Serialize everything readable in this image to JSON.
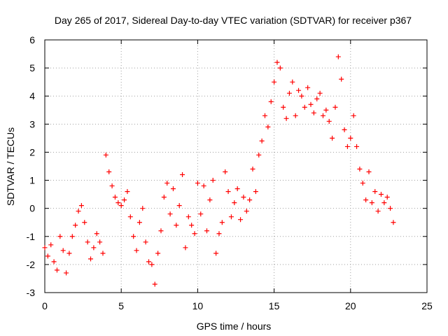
{
  "chart_data": {
    "type": "scatter",
    "title": "Day 265 of 2017, Sidereal Day-to-day VTEC variation (SDTVAR) for receiver p367",
    "xlabel": "GPS time / hours",
    "ylabel": "SDTVAR / TECUs",
    "xlim": [
      0,
      25
    ],
    "ylim": [
      -3,
      6
    ],
    "xticks": [
      "0",
      "5",
      "10",
      "15",
      "20",
      "25"
    ],
    "yticks": [
      "-3",
      "-2",
      "-1",
      "0",
      "1",
      "2",
      "3",
      "4",
      "5",
      "6"
    ],
    "grid": true,
    "marker": "+",
    "color": "#ff0000",
    "series": [
      {
        "name": "p367",
        "x": [
          0.0,
          0.2,
          0.4,
          0.6,
          0.8,
          1.0,
          1.2,
          1.4,
          1.6,
          1.8,
          2.0,
          2.2,
          2.4,
          2.6,
          2.8,
          3.0,
          3.2,
          3.4,
          3.6,
          3.8,
          4.0,
          4.2,
          4.4,
          4.6,
          4.8,
          5.0,
          5.2,
          5.4,
          5.6,
          5.8,
          6.0,
          6.2,
          6.4,
          6.6,
          6.8,
          7.0,
          7.2,
          7.4,
          7.6,
          7.8,
          8.0,
          8.2,
          8.4,
          8.6,
          8.8,
          9.0,
          9.2,
          9.4,
          9.6,
          9.8,
          10.0,
          10.2,
          10.4,
          10.6,
          10.8,
          11.0,
          11.2,
          11.4,
          11.6,
          11.8,
          12.0,
          12.2,
          12.4,
          12.6,
          12.8,
          13.0,
          13.2,
          13.4,
          13.6,
          13.8,
          14.0,
          14.2,
          14.4,
          14.6,
          14.8,
          15.0,
          15.2,
          15.4,
          15.6,
          15.8,
          16.0,
          16.2,
          16.4,
          16.6,
          16.8,
          17.0,
          17.2,
          17.4,
          17.6,
          17.8,
          18.0,
          18.2,
          18.4,
          18.6,
          18.8,
          19.0,
          19.2,
          19.4,
          19.6,
          19.8,
          20.0,
          20.2,
          20.4,
          20.6,
          20.8,
          21.0,
          21.2,
          21.4,
          21.6,
          21.8,
          22.0,
          22.2,
          22.4,
          22.6,
          22.8
        ],
        "y": [
          -1.4,
          -1.7,
          -1.3,
          -1.9,
          -2.2,
          -1.0,
          -1.5,
          -2.3,
          -1.6,
          -1.0,
          -0.6,
          -0.1,
          0.1,
          -0.5,
          -1.2,
          -1.8,
          -1.4,
          -0.9,
          -1.2,
          -1.6,
          1.9,
          1.3,
          0.8,
          0.4,
          0.2,
          0.1,
          0.3,
          0.6,
          -0.3,
          -1.0,
          -1.5,
          -0.5,
          0.0,
          -1.2,
          -1.9,
          -2.0,
          -2.7,
          -1.6,
          -0.8,
          0.4,
          0.9,
          -0.2,
          0.7,
          -0.6,
          0.1,
          1.2,
          -1.4,
          -0.3,
          -0.6,
          -0.9,
          0.9,
          -0.2,
          0.8,
          -0.8,
          0.3,
          1.0,
          -1.6,
          -0.9,
          -0.5,
          1.3,
          0.6,
          -0.3,
          0.2,
          0.7,
          -0.4,
          0.4,
          -0.1,
          0.3,
          1.4,
          0.6,
          1.9,
          2.4,
          3.3,
          2.9,
          3.8,
          4.5,
          5.2,
          5.0,
          3.6,
          3.2,
          4.1,
          4.5,
          3.3,
          4.2,
          4.0,
          3.6,
          4.3,
          3.7,
          3.4,
          3.9,
          4.1,
          3.3,
          3.5,
          3.1,
          2.5,
          3.6,
          5.4,
          4.6,
          2.8,
          2.2,
          2.5,
          3.3,
          2.2,
          1.4,
          0.9,
          0.3,
          1.3,
          0.2,
          0.6,
          -0.1,
          0.5,
          0.2,
          0.4,
          0.0,
          -0.5
        ]
      }
    ]
  }
}
